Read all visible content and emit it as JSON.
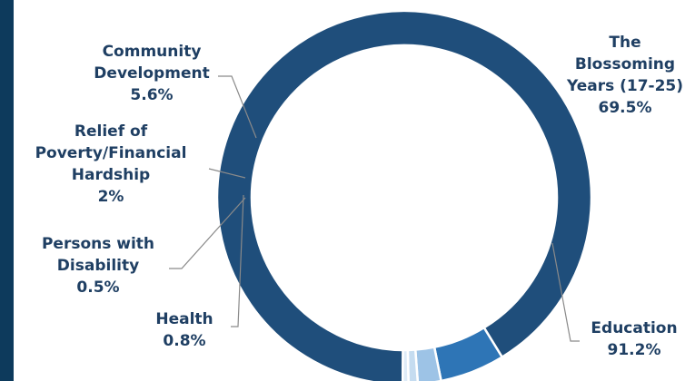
{
  "chart_data": {
    "type": "pie",
    "subtype": "donut",
    "slices": [
      {
        "label_lines": [
          "Education",
          "91.2%"
        ],
        "name": "Education",
        "value": 91.2,
        "color": "#1f4e7b"
      },
      {
        "label_lines": [
          "Community",
          "Development",
          "5.6%"
        ],
        "name": "Community Development",
        "value": 5.6,
        "color": "#2e75b6"
      },
      {
        "label_lines": [
          "Relief of",
          "Poverty/Financial",
          "Hardship",
          "2%"
        ],
        "name": "Relief of Poverty/Financial Hardship",
        "value": 2.0,
        "color": "#9dc3e6"
      },
      {
        "label_lines": [
          "Health",
          "0.8%"
        ],
        "name": "Health",
        "value": 0.8,
        "color": "#c5dcf0"
      },
      {
        "label_lines": [
          "Persons with",
          "Disability",
          "0.5%"
        ],
        "name": "Persons with Disability",
        "value": 0.5,
        "color": "#deebf7"
      }
    ],
    "corner_label_lines": [
      "The",
      "Blossoming",
      "Years (17-25)",
      "69.5%"
    ],
    "corner_label_value": 69.5
  }
}
